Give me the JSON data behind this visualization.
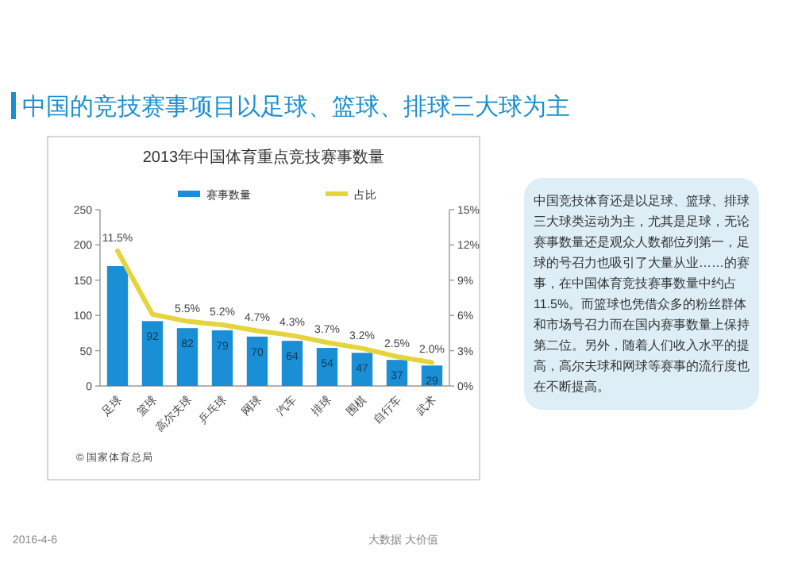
{
  "chart_data": {
    "type": "bar",
    "title": "中国的竞技赛事项目以足球、篮球、排球三大球为主",
    "subtitle": "2013年中国体育重点竞技赛事数量",
    "categories": [
      "足球",
      "篮球",
      "高尔夫球",
      "乒乓球",
      "网球",
      "汽车",
      "排球",
      "围棋",
      "自行车",
      "武术"
    ],
    "series": [
      {
        "name": "赛事数量",
        "color": "#1a8fd6",
        "values": [
          170,
          92,
          82,
          79,
          70,
          64,
          54,
          47,
          37,
          29
        ],
        "value_labels": [
          null,
          "92",
          "82",
          "79",
          "70",
          "64",
          "54",
          "47",
          "37",
          "29"
        ]
      },
      {
        "name": "占比",
        "type": "line",
        "axis": "y2",
        "color": "#e6d43c",
        "values": [
          11.5,
          6.1,
          5.5,
          5.2,
          4.7,
          4.3,
          3.7,
          3.2,
          2.5,
          2.0
        ],
        "value_labels": [
          "11.5%",
          null,
          "5.5%",
          "5.2%",
          "4.7%",
          "4.3%",
          "3.7%",
          "3.2%",
          "2.5%",
          "2.0%"
        ]
      }
    ],
    "ylim": [
      0,
      250
    ],
    "yticks": [
      0,
      50,
      100,
      150,
      200,
      250
    ],
    "y2lim": [
      0,
      15
    ],
    "y2ticks": [
      {
        "value": 0,
        "label": "0%"
      },
      {
        "value": 3,
        "label": "3%"
      },
      {
        "value": 6,
        "label": "6%"
      },
      {
        "value": 9,
        "label": "9%"
      },
      {
        "value": 12,
        "label": "12%"
      },
      {
        "value": 15,
        "label": "15%"
      }
    ],
    "legend": "top",
    "grid": false,
    "marker": "none",
    "annotations": [
      "© 国家体育总局",
      "中国竞技体育还是以足球、篮球、排球三大球类运动为主，尤其是足球，无论赛事数量还是观众人数都位列第一，足球的号召力也吸引了大量从业……的赛事，在中国体育竞技赛事数量中约占11.5%。而篮球也凭借众多的粉丝群体和市场号召力而在国内赛事数量上保持第二位。另外，随着人们收入水平的提高，高尔夫球和网球等赛事的流行度也在不断提高。",
      "2016-4-6",
      "大数据 大价值"
    ]
  }
}
